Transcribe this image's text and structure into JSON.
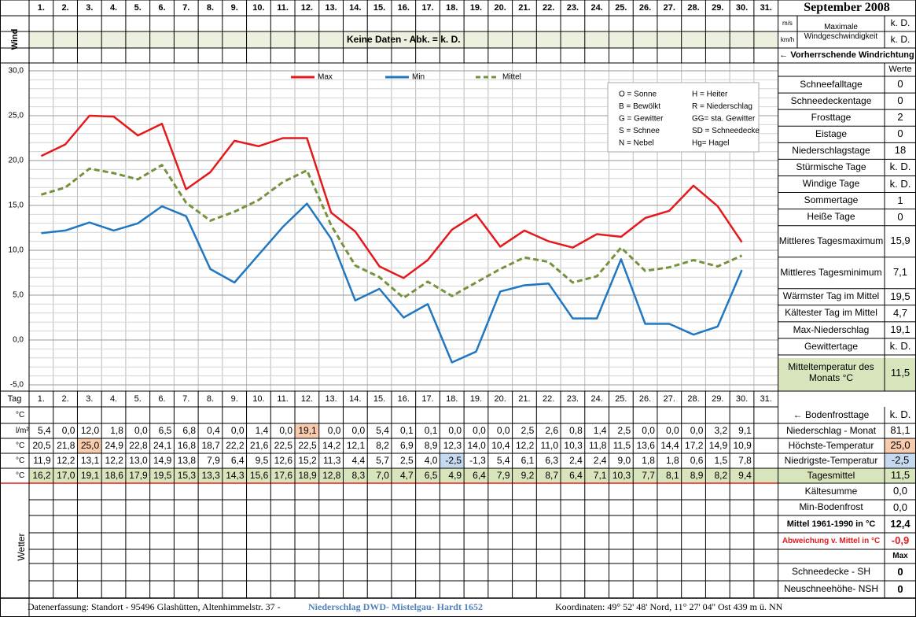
{
  "header": {
    "month": "September 2008",
    "unit_ms": "m/s",
    "unit_kmh": "km/h",
    "wind_label": "Maximale Windgeschwindigkeit",
    "wind_ms": "k. D.",
    "wind_kmh": "k. D.",
    "wind_direction": "← Vorherrschende Windrichtung"
  },
  "wind": {
    "label": "Wind",
    "note": "Keine Daten - Abk. = k. D."
  },
  "chart_data": {
    "type": "line",
    "categories": [
      "1.",
      "2.",
      "3.",
      "4.",
      "5.",
      "6.",
      "7.",
      "8.",
      "9.",
      "10.",
      "11.",
      "12.",
      "13.",
      "14.",
      "15.",
      "16.",
      "17.",
      "18.",
      "19.",
      "20.",
      "21.",
      "22.",
      "23.",
      "24.",
      "25.",
      "26.",
      "27.",
      "28.",
      "29.",
      "30.",
      "31."
    ],
    "ylim": [
      -5,
      30
    ],
    "yticks": [
      {
        "value": -5,
        "label": "-5,0"
      },
      {
        "value": 0,
        "label": "0,0"
      },
      {
        "value": 5,
        "label": "5,0"
      },
      {
        "value": 10,
        "label": "10,0"
      },
      {
        "value": 15,
        "label": "15,0"
      },
      {
        "value": 20,
        "label": "20,0"
      },
      {
        "value": 25,
        "label": "25,0"
      },
      {
        "value": 30,
        "label": "30,0"
      }
    ],
    "grid": true,
    "series": [
      {
        "name": "Max",
        "color": "#e3191c",
        "values": [
          20.5,
          21.8,
          25.0,
          24.9,
          22.8,
          24.1,
          16.8,
          18.7,
          22.2,
          21.6,
          22.5,
          22.5,
          14.2,
          12.1,
          8.2,
          6.9,
          8.9,
          12.3,
          14.0,
          10.4,
          12.2,
          11.0,
          10.3,
          11.8,
          11.5,
          13.6,
          14.4,
          17.2,
          14.9,
          10.9,
          null
        ],
        "value_labels": [
          "20,5",
          "21,8",
          "25,0",
          "24,9",
          "22,8",
          "24,1",
          "16,8",
          "18,7",
          "22,2",
          "21,6",
          "22,5",
          "22,5",
          "14,2",
          "12,1",
          "8,2",
          "6,9",
          "8,9",
          "12,3",
          "14,0",
          "10,4",
          "12,2",
          "11,0",
          "10,3",
          "11,8",
          "11,5",
          "13,6",
          "14,4",
          "17,2",
          "14,9",
          "10,9",
          null
        ]
      },
      {
        "name": "Min",
        "color": "#1f78c1",
        "values": [
          11.9,
          12.2,
          13.1,
          12.2,
          13.0,
          14.9,
          13.8,
          7.9,
          6.4,
          9.5,
          12.6,
          15.2,
          11.3,
          4.4,
          5.7,
          2.5,
          4.0,
          -2.5,
          -1.3,
          5.4,
          6.1,
          6.3,
          2.4,
          2.4,
          9.0,
          1.8,
          1.8,
          0.6,
          1.5,
          7.8,
          null
        ],
        "value_labels": [
          "11,9",
          "12,2",
          "13,1",
          "12,2",
          "13,0",
          "14,9",
          "13,8",
          "7,9",
          "6,4",
          "9,5",
          "12,6",
          "15,2",
          "11,3",
          "4,4",
          "5,7",
          "2,5",
          "4,0",
          "-2,5",
          "-1,3",
          "5,4",
          "6,1",
          "6,3",
          "2,4",
          "2,4",
          "9,0",
          "1,8",
          "1,8",
          "0,6",
          "1,5",
          "7,8",
          null
        ]
      },
      {
        "name": "Mittel",
        "color": "#76923c",
        "dashed": true,
        "values": [
          16.2,
          17.0,
          19.1,
          18.6,
          17.9,
          19.5,
          15.3,
          13.3,
          14.3,
          15.6,
          17.6,
          18.9,
          12.8,
          8.3,
          7.0,
          4.7,
          6.5,
          4.9,
          6.4,
          7.9,
          9.2,
          8.7,
          6.4,
          7.1,
          10.3,
          7.7,
          8.1,
          8.9,
          8.2,
          9.4,
          null
        ],
        "value_labels": [
          "16,2",
          "17,0",
          "19,1",
          "18,6",
          "17,9",
          "19,5",
          "15,3",
          "13,3",
          "14,3",
          "15,6",
          "17,6",
          "18,9",
          "12,8",
          "8,3",
          "7,0",
          "4,7",
          "6,5",
          "4,9",
          "6,4",
          "7,9",
          "9,2",
          "8,7",
          "6,4",
          "7,1",
          "10,3",
          "7,7",
          "8,1",
          "8,9",
          "8,2",
          "9,4",
          null
        ]
      }
    ]
  },
  "legend_codes": [
    "O = Sonne",
    "H = Heiter",
    "B = Bewölkt",
    "R = Niederschlag",
    "G = Gewitter",
    "GG= sta. Gewitter",
    "S = Schnee",
    "SD = Schneedecke",
    "N = Nebel",
    "Hg= Hagel"
  ],
  "stats": {
    "header": "Werte",
    "rows": [
      {
        "label": "Schneefalltage",
        "value": "0"
      },
      {
        "label": "Schneedeckentage",
        "value": "0"
      },
      {
        "label": "Frosttage",
        "value": "2"
      },
      {
        "label": "Eistage",
        "value": "0"
      },
      {
        "label": "Niederschlagstage",
        "value": "18"
      },
      {
        "label": "Stürmische Tage",
        "value": "k. D."
      },
      {
        "label": "Windige Tage",
        "value": "k. D."
      },
      {
        "label": "Sommertage",
        "value": "1"
      },
      {
        "label": "Heiße Tage",
        "value": "0"
      },
      {
        "label": "Mittleres Tagesmaximum",
        "value": "15,9"
      },
      {
        "label": "Mittleres Tagesminimum",
        "value": "7,1"
      },
      {
        "label": "Wärmster Tag im Mittel",
        "value": "19,5"
      },
      {
        "label": "Kältester Tag im Mittel",
        "value": "4,7"
      },
      {
        "label": "Max-Niederschlag",
        "value": "19,1"
      },
      {
        "label": "Gewittertage",
        "value": "k. D."
      },
      {
        "label": "Mitteltemperatur des Monats °C",
        "value": "11,5"
      }
    ]
  },
  "table": {
    "tag_label": "Tag",
    "units": [
      "°C",
      "l/m²",
      "°C",
      "°C",
      "°C"
    ],
    "precipitation": [
      "5,4",
      "0,0",
      "12,0",
      "1,8",
      "0,0",
      "6,5",
      "6,8",
      "0,4",
      "0,0",
      "1,4",
      "0,0",
      "19,1",
      "0,0",
      "0,0",
      "5,4",
      "0,1",
      "0,1",
      "0,0",
      "0,0",
      "0,0",
      "2,5",
      "2,6",
      "0,8",
      "1,4",
      "2,5",
      "0,0",
      "0,0",
      "0,0",
      "3,2",
      "9,1",
      null
    ],
    "wetter_label": "Wetter"
  },
  "summary": {
    "rows": [
      {
        "label": "← Bodenfrosttage",
        "value": "k. D."
      },
      {
        "label": "Niederschlag - Monat",
        "value": "81,1"
      },
      {
        "label": "Höchste-Temperatur",
        "value": "25,0"
      },
      {
        "label": "Niedrigste-Temperatur",
        "value": "-2,5"
      },
      {
        "label": "Tagesmittel",
        "value": "11,5"
      },
      {
        "label": "Kältesumme",
        "value": "0,0"
      },
      {
        "label": "Min-Bodenfrost",
        "value": "0,0"
      },
      {
        "label": "Mittel 1961-1990 in °C",
        "value": "12,4"
      },
      {
        "label": "Abweichung v. Mittel in °C",
        "value": "-0,9"
      },
      {
        "value": "Max"
      },
      {
        "label": "Schneedecke - SH",
        "value": "0"
      },
      {
        "label": "Neuschneehöhe- NSH",
        "value": "0"
      }
    ]
  },
  "footer": {
    "source": "Datenerfassung:  Standort -  95496  Glashütten, Altenhimmelstr. 37 -",
    "precip_source": "Niederschlag DWD- Mistelgau- Hardt 1652",
    "coordinates": "Koordinaten:  49° 52' 48' Nord,    11° 27' 04'' Ost   439 m ü. NN"
  }
}
